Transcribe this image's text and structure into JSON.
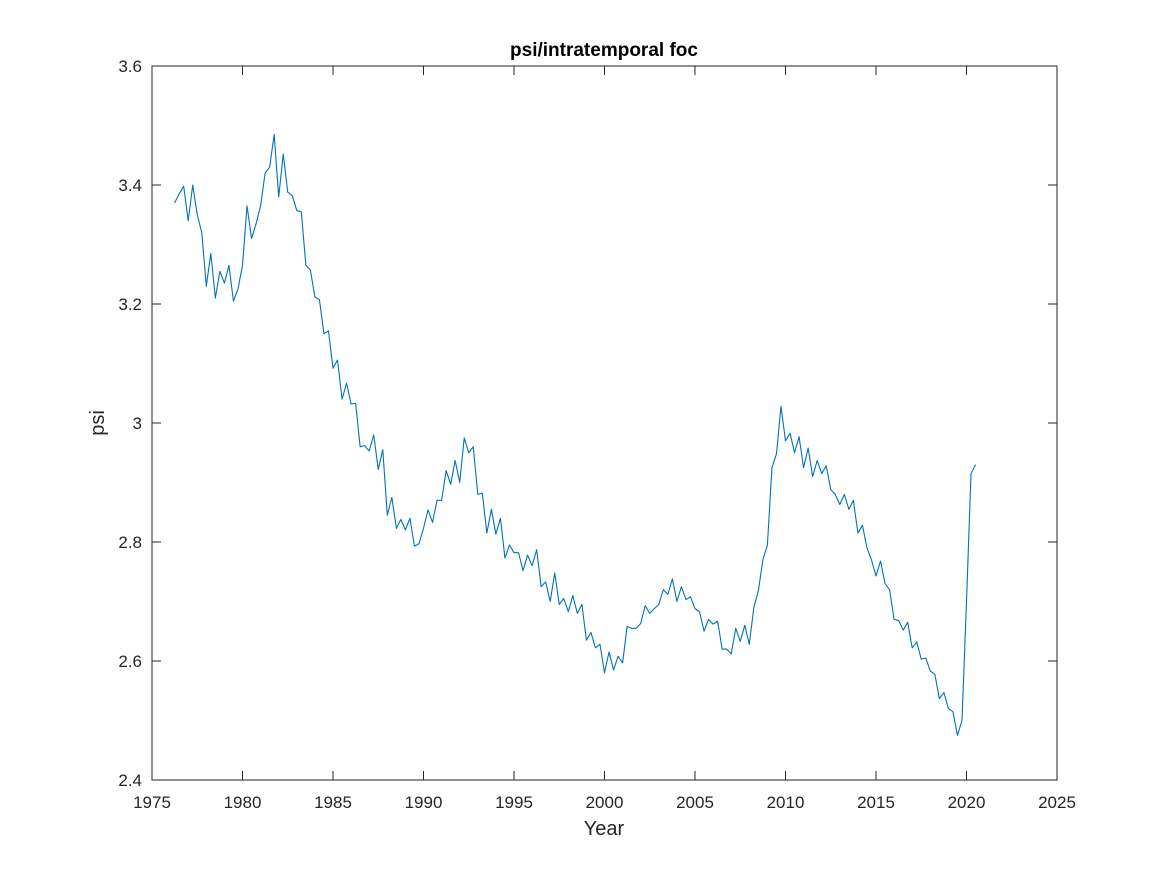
{
  "chart_data": {
    "type": "line",
    "title": "psi/intratemporal foc",
    "xlabel": "Year",
    "ylabel": "psi",
    "xlim": [
      1975,
      2025
    ],
    "ylim": [
      2.4,
      3.6
    ],
    "xticks": [
      1975,
      1980,
      1985,
      1990,
      1995,
      2000,
      2005,
      2010,
      2015,
      2020,
      2025
    ],
    "yticks": [
      2.4,
      2.6,
      2.8,
      3.0,
      3.2,
      3.4,
      3.6
    ],
    "xtick_labels": [
      "1975",
      "1980",
      "1985",
      "1990",
      "1995",
      "2000",
      "2005",
      "2010",
      "2015",
      "2020",
      "2025"
    ],
    "ytick_labels": [
      "2.4",
      "2.6",
      "2.8",
      "3",
      "3.2",
      "3.4",
      "3.6"
    ],
    "grid": false,
    "line_color": "#0072BD",
    "x_start": 1976.25,
    "x_step": 0.25,
    "series": [
      {
        "values": [
          3.37,
          3.385,
          3.398,
          3.34,
          3.4,
          3.35,
          3.32,
          3.23,
          3.285,
          3.21,
          3.255,
          3.235,
          3.265,
          3.205,
          3.225,
          3.265,
          3.365,
          3.31,
          3.335,
          3.365,
          3.42,
          3.43,
          3.485,
          3.38,
          3.452,
          3.388,
          3.382,
          3.357,
          3.355,
          3.265,
          3.257,
          3.212,
          3.207,
          3.15,
          3.155,
          3.092,
          3.106,
          3.04,
          3.067,
          3.032,
          3.033,
          2.96,
          2.962,
          2.953,
          2.98,
          2.922,
          2.955,
          2.845,
          2.875,
          2.823,
          2.838,
          2.82,
          2.84,
          2.793,
          2.797,
          2.823,
          2.854,
          2.833,
          2.87,
          2.87,
          2.92,
          2.897,
          2.937,
          2.9,
          2.975,
          2.95,
          2.96,
          2.88,
          2.882,
          2.815,
          2.855,
          2.813,
          2.84,
          2.773,
          2.795,
          2.782,
          2.782,
          2.752,
          2.778,
          2.76,
          2.787,
          2.725,
          2.733,
          2.7,
          2.748,
          2.695,
          2.705,
          2.683,
          2.71,
          2.68,
          2.695,
          2.635,
          2.648,
          2.622,
          2.628,
          2.58,
          2.615,
          2.585,
          2.608,
          2.597,
          2.658,
          2.655,
          2.655,
          2.663,
          2.693,
          2.68,
          2.688,
          2.695,
          2.72,
          2.712,
          2.738,
          2.7,
          2.725,
          2.703,
          2.708,
          2.688,
          2.683,
          2.65,
          2.67,
          2.662,
          2.667,
          2.62,
          2.62,
          2.612,
          2.655,
          2.633,
          2.66,
          2.628,
          2.69,
          2.718,
          2.77,
          2.795,
          2.925,
          2.948,
          3.028,
          2.97,
          2.983,
          2.95,
          2.977,
          2.925,
          2.958,
          2.91,
          2.937,
          2.915,
          2.928,
          2.888,
          2.88,
          2.863,
          2.88,
          2.855,
          2.87,
          2.815,
          2.828,
          2.79,
          2.77,
          2.743,
          2.768,
          2.73,
          2.72,
          2.67,
          2.668,
          2.652,
          2.665,
          2.622,
          2.632,
          2.603,
          2.605,
          2.583,
          2.578,
          2.537,
          2.547,
          2.52,
          2.515,
          2.475,
          2.5,
          2.7,
          2.915,
          2.93
        ]
      }
    ]
  }
}
